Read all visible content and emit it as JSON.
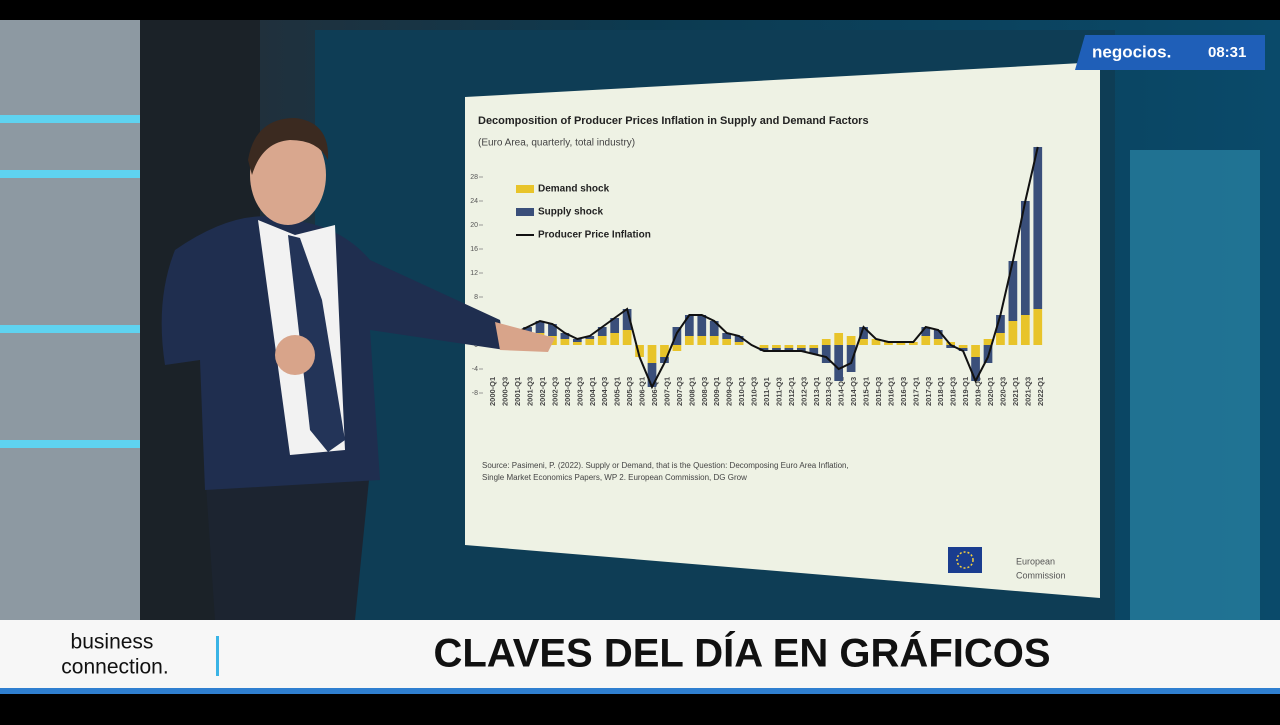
{
  "broadcast": {
    "channel": "negocios.",
    "time": "08:31",
    "program": [
      "business",
      "connection."
    ],
    "headline": "CLAVES DEL DÍA EN GRÁFICOS"
  },
  "chart_data": {
    "type": "bar",
    "title": "Decomposition of Producer Prices Inflation in Supply and Demand Factors",
    "subtitle": "(Euro Area, quarterly, total industry)",
    "categories": [
      "2000-Q1",
      "2000-Q3",
      "2001-Q1",
      "2001-Q3",
      "2002-Q1",
      "2002-Q3",
      "2003-Q1",
      "2003-Q3",
      "2004-Q1",
      "2004-Q3",
      "2005-Q1",
      "2005-Q3",
      "2006-Q1",
      "2006-Q3",
      "2007-Q1",
      "2007-Q3",
      "2008-Q1",
      "2008-Q3",
      "2009-Q1",
      "2009-Q3",
      "2010-Q1",
      "2010-Q3",
      "2011-Q1",
      "2011-Q3",
      "2012-Q1",
      "2012-Q3",
      "2013-Q1",
      "2013-Q3",
      "2014-Q1",
      "2014-Q3",
      "2015-Q1",
      "2015-Q3",
      "2016-Q1",
      "2016-Q3",
      "2017-Q1",
      "2017-Q3",
      "2018-Q1",
      "2018-Q3",
      "2019-Q1",
      "2019-Q3",
      "2020-Q1",
      "2020-Q3",
      "2021-Q1",
      "2021-Q3",
      "2022-Q1"
    ],
    "series": [
      {
        "name": "Demand shock",
        "color": "#e8c42a",
        "values": [
          0.5,
          1,
          1,
          1.5,
          2,
          1.5,
          1,
          0.5,
          1,
          1.5,
          2,
          2.5,
          -2,
          -3,
          -2,
          -1,
          1.5,
          1.5,
          1.5,
          1,
          0.5,
          0,
          -0.5,
          -0.5,
          -0.5,
          -0.5,
          -0.5,
          1,
          2,
          1.5,
          1,
          1,
          0.5,
          0.5,
          0.5,
          1.5,
          1,
          0.5,
          -0.5,
          -2,
          1,
          2,
          4,
          5,
          6
        ]
      },
      {
        "name": "Supply shock",
        "color": "#3a4f7a",
        "values": [
          0.5,
          0.5,
          1,
          1.5,
          2,
          2,
          1,
          0.5,
          0.5,
          1.5,
          2.5,
          3.5,
          0,
          -4,
          -1,
          3,
          3.5,
          3.5,
          2.5,
          1,
          1,
          0,
          -0.5,
          -0.5,
          -0.5,
          -0.5,
          -1,
          -3,
          -6,
          -4.5,
          2,
          0,
          0,
          0,
          0,
          1.5,
          1.5,
          -0.5,
          -0.5,
          -4,
          -3,
          3,
          10,
          19,
          27
        ]
      },
      {
        "name": "Producer Price Inflation",
        "color": "#111111",
        "type": "line",
        "values": [
          1,
          1.5,
          2,
          3,
          4,
          3.5,
          2,
          1,
          1.5,
          3,
          4.5,
          6,
          -2,
          -7,
          -3,
          2,
          5,
          5,
          4,
          2,
          1.5,
          0,
          -1,
          -1,
          -1,
          -1,
          -1.5,
          -2,
          -4,
          -3,
          3,
          1,
          0.5,
          0.5,
          0.5,
          3,
          2.5,
          0,
          -1,
          -6,
          -2,
          5,
          14,
          24,
          33
        ]
      }
    ],
    "ylim": [
      -9,
      32
    ],
    "yticks": [
      -8,
      -4,
      0,
      4,
      8,
      12,
      16,
      20,
      24,
      28
    ],
    "source": "Source: Pasimeni, P. (2022). Supply or Demand, that is the Question: Decomposing Euro Area Inflation,",
    "source2": "Single Market Economics Papers, WP 2. European Commission, DG Grow",
    "logo": [
      "European",
      "Commission"
    ]
  }
}
